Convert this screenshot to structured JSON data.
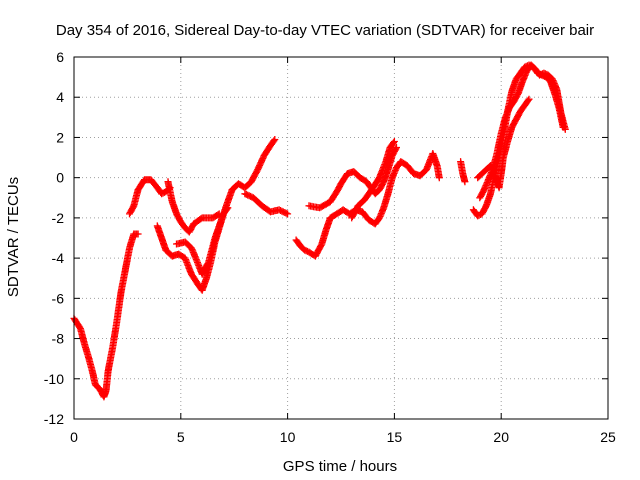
{
  "chart_data": {
    "type": "scatter",
    "title": "Day 354 of 2016, Sidereal Day-to-day VTEC variation (SDTVAR) for receiver bair",
    "xlabel": "GPS time / hours",
    "ylabel": "SDTVAR / TECUs",
    "xlim": [
      0,
      25
    ],
    "ylim": [
      -12,
      6
    ],
    "xticks": [
      "0",
      "5",
      "10",
      "15",
      "20",
      "25"
    ],
    "yticks": [
      "-12",
      "-10",
      "-8",
      "-6",
      "-4",
      "-2",
      "0",
      "2",
      "4",
      "6"
    ],
    "grid": true,
    "marker": "plus",
    "colors": {
      "series": "#ff0000",
      "grid": "#a0a0a0",
      "frame": "#000000"
    },
    "series": [
      {
        "segments": [
          [
            [
              0.0,
              -7.0
            ],
            [
              0.3,
              -7.5
            ],
            [
              0.5,
              -8.3
            ],
            [
              0.7,
              -9.0
            ],
            [
              0.9,
              -9.8
            ],
            [
              1.0,
              -10.3
            ],
            [
              1.2,
              -10.5
            ],
            [
              1.4,
              -10.9
            ],
            [
              1.5,
              -10.6
            ],
            [
              1.6,
              -9.6
            ],
            [
              1.8,
              -8.5
            ],
            [
              2.0,
              -7.2
            ],
            [
              2.2,
              -5.7
            ],
            [
              2.4,
              -4.6
            ],
            [
              2.6,
              -3.5
            ],
            [
              2.8,
              -2.8
            ],
            [
              3.0,
              -2.8
            ]
          ],
          [
            [
              2.6,
              -1.8
            ],
            [
              2.8,
              -1.4
            ],
            [
              3.0,
              -0.6
            ],
            [
              3.3,
              -0.1
            ],
            [
              3.6,
              -0.1
            ],
            [
              3.9,
              -0.5
            ],
            [
              4.1,
              -0.8
            ],
            [
              4.3,
              -0.7
            ],
            [
              4.5,
              -0.5
            ]
          ],
          [
            [
              3.9,
              -2.4
            ],
            [
              4.1,
              -3.0
            ],
            [
              4.3,
              -3.6
            ],
            [
              4.6,
              -3.9
            ],
            [
              4.9,
              -3.8
            ],
            [
              5.2,
              -4.0
            ],
            [
              5.5,
              -4.8
            ],
            [
              5.8,
              -5.3
            ],
            [
              6.0,
              -5.6
            ],
            [
              6.2,
              -5.0
            ],
            [
              6.4,
              -4.2
            ],
            [
              6.6,
              -3.2
            ],
            [
              6.8,
              -2.5
            ],
            [
              7.0,
              -1.8
            ],
            [
              7.2,
              -1.5
            ]
          ],
          [
            [
              4.4,
              -0.2
            ],
            [
              4.6,
              -1.2
            ],
            [
              4.8,
              -1.8
            ],
            [
              5.0,
              -2.2
            ],
            [
              5.2,
              -2.5
            ],
            [
              5.4,
              -2.7
            ],
            [
              5.6,
              -2.3
            ],
            [
              6.0,
              -2.0
            ],
            [
              6.5,
              -2.0
            ],
            [
              6.8,
              -1.8
            ]
          ],
          [
            [
              4.8,
              -3.3
            ],
            [
              5.2,
              -3.2
            ],
            [
              5.5,
              -3.5
            ],
            [
              5.7,
              -4.0
            ],
            [
              6.0,
              -4.8
            ],
            [
              6.3,
              -4.2
            ],
            [
              6.6,
              -3.0
            ],
            [
              7.0,
              -1.8
            ],
            [
              7.4,
              -0.6
            ],
            [
              7.7,
              -0.3
            ],
            [
              8.0,
              -0.5
            ],
            [
              8.3,
              -0.2
            ],
            [
              8.6,
              0.4
            ],
            [
              8.9,
              1.1
            ],
            [
              9.2,
              1.6
            ],
            [
              9.4,
              1.9
            ]
          ],
          [
            [
              8.0,
              -0.8
            ],
            [
              8.4,
              -1.0
            ],
            [
              8.8,
              -1.4
            ],
            [
              9.2,
              -1.7
            ],
            [
              9.6,
              -1.6
            ],
            [
              10.0,
              -1.8
            ]
          ],
          [
            [
              10.4,
              -3.1
            ],
            [
              10.6,
              -3.4
            ],
            [
              10.8,
              -3.6
            ],
            [
              11.0,
              -3.7
            ],
            [
              11.3,
              -3.9
            ],
            [
              11.6,
              -3.3
            ],
            [
              11.8,
              -2.6
            ],
            [
              12.0,
              -2.0
            ],
            [
              12.3,
              -1.8
            ],
            [
              12.6,
              -1.6
            ],
            [
              12.9,
              -1.8
            ],
            [
              13.2,
              -1.6
            ],
            [
              13.5,
              -1.7
            ],
            [
              13.8,
              -2.1
            ],
            [
              14.1,
              -2.3
            ],
            [
              14.3,
              -2.0
            ],
            [
              14.5,
              -1.5
            ],
            [
              14.7,
              -0.8
            ],
            [
              14.9,
              0.0
            ],
            [
              15.1,
              0.5
            ],
            [
              15.3,
              0.8
            ],
            [
              15.6,
              0.6
            ],
            [
              15.9,
              0.2
            ],
            [
              16.2,
              0.1
            ],
            [
              16.5,
              0.4
            ],
            [
              16.8,
              1.2
            ],
            [
              17.0,
              0.6
            ],
            [
              17.1,
              0.0
            ]
          ],
          [
            [
              11.0,
              -1.4
            ],
            [
              11.5,
              -1.5
            ],
            [
              12.0,
              -1.2
            ],
            [
              12.3,
              -0.7
            ],
            [
              12.5,
              -0.3
            ],
            [
              12.8,
              0.2
            ],
            [
              13.1,
              0.3
            ],
            [
              13.4,
              0.0
            ],
            [
              13.7,
              -0.2
            ],
            [
              13.9,
              -0.5
            ],
            [
              14.1,
              -0.8
            ],
            [
              14.3,
              -0.6
            ],
            [
              14.5,
              -0.2
            ],
            [
              14.7,
              0.4
            ],
            [
              14.9,
              1.1
            ],
            [
              15.1,
              1.5
            ]
          ],
          [
            [
              13.0,
              -2.0
            ],
            [
              13.3,
              -1.4
            ],
            [
              13.6,
              -1.1
            ],
            [
              14.0,
              -0.5
            ],
            [
              14.3,
              0.0
            ],
            [
              14.6,
              0.8
            ],
            [
              14.8,
              1.5
            ],
            [
              15.0,
              1.8
            ]
          ],
          [
            [
              18.1,
              0.8
            ],
            [
              18.2,
              0.2
            ],
            [
              18.3,
              -0.2
            ]
          ],
          [
            [
              18.7,
              -1.6
            ],
            [
              18.9,
              -1.9
            ],
            [
              19.1,
              -1.8
            ],
            [
              19.3,
              -1.4
            ],
            [
              19.5,
              -0.8
            ],
            [
              19.7,
              0.2
            ],
            [
              19.9,
              1.0
            ],
            [
              20.1,
              2.0
            ],
            [
              20.3,
              3.3
            ],
            [
              20.5,
              4.3
            ],
            [
              20.7,
              4.9
            ],
            [
              20.9,
              5.2
            ],
            [
              21.1,
              5.5
            ],
            [
              21.3,
              5.6
            ],
            [
              21.5,
              5.5
            ],
            [
              21.7,
              5.2
            ],
            [
              21.9,
              5.1
            ],
            [
              22.1,
              5.0
            ],
            [
              22.3,
              4.8
            ],
            [
              22.5,
              4.2
            ],
            [
              22.7,
              3.5
            ],
            [
              22.9,
              2.5
            ]
          ],
          [
            [
              19.0,
              -1.0
            ],
            [
              19.2,
              -0.6
            ],
            [
              19.4,
              -0.1
            ],
            [
              19.6,
              0.4
            ],
            [
              19.8,
              1.2
            ],
            [
              20.0,
              2.2
            ],
            [
              20.2,
              3.0
            ],
            [
              20.4,
              3.5
            ],
            [
              20.6,
              3.8
            ],
            [
              20.8,
              4.2
            ],
            [
              21.0,
              4.8
            ],
            [
              21.2,
              5.3
            ],
            [
              21.4,
              5.6
            ],
            [
              21.6,
              5.4
            ],
            [
              21.8,
              5.1
            ],
            [
              22.0,
              5.2
            ],
            [
              22.2,
              5.1
            ],
            [
              22.4,
              4.9
            ],
            [
              22.6,
              4.4
            ],
            [
              22.8,
              3.2
            ],
            [
              23.0,
              2.4
            ]
          ],
          [
            [
              18.9,
              0.0
            ],
            [
              19.2,
              0.3
            ],
            [
              19.5,
              0.6
            ],
            [
              19.7,
              0.2
            ],
            [
              19.9,
              -0.5
            ],
            [
              20.0,
              0.2
            ],
            [
              20.1,
              1.0
            ],
            [
              20.3,
              1.8
            ],
            [
              20.5,
              2.5
            ],
            [
              20.7,
              2.9
            ],
            [
              20.9,
              3.3
            ],
            [
              21.1,
              3.6
            ],
            [
              21.3,
              3.9
            ]
          ]
        ]
      }
    ]
  }
}
